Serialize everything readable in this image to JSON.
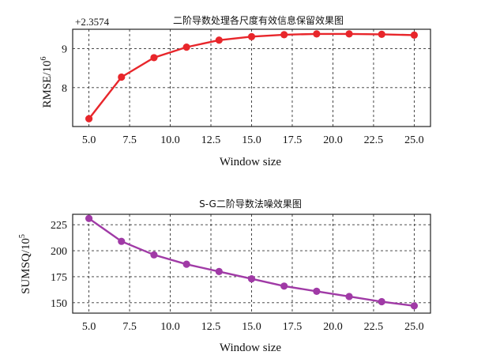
{
  "chart_data": [
    {
      "type": "line",
      "title": "二阶导数处理各尺度有效信息保留效果图",
      "xlabel": "Window size",
      "ylabel": "RMSE/10",
      "ylabel_exp": "6",
      "offset_text": "+2.3574",
      "xlim": [
        4.0,
        26.0
      ],
      "ylim": [
        7.0,
        9.5
      ],
      "xticks": [
        5.0,
        7.5,
        10.0,
        12.5,
        15.0,
        17.5,
        20.0,
        22.5,
        25.0
      ],
      "xtick_labels": [
        "5.0",
        "7.5",
        "10.0",
        "12.5",
        "15.0",
        "17.5",
        "20.0",
        "22.5",
        "25.0"
      ],
      "yticks": [
        8,
        9
      ],
      "ytick_labels": [
        "8",
        "9"
      ],
      "grid": true,
      "color": "#e8262b",
      "x": [
        5,
        7,
        9,
        11,
        13,
        15,
        17,
        19,
        21,
        23,
        25
      ],
      "y": [
        7.2,
        8.27,
        8.77,
        9.04,
        9.22,
        9.31,
        9.36,
        9.38,
        9.38,
        9.37,
        9.35
      ]
    },
    {
      "type": "line",
      "title": "S-G二阶导数法噪效果图",
      "xlabel": "Window size",
      "ylabel": "SUMSQ/10",
      "ylabel_exp": "5",
      "xlim": [
        4.0,
        26.0
      ],
      "ylim": [
        140,
        235
      ],
      "xticks": [
        5.0,
        7.5,
        10.0,
        12.5,
        15.0,
        17.5,
        20.0,
        22.5,
        25.0
      ],
      "xtick_labels": [
        "5.0",
        "7.5",
        "10.0",
        "12.5",
        "15.0",
        "17.5",
        "20.0",
        "22.5",
        "25.0"
      ],
      "yticks": [
        150,
        175,
        200,
        225
      ],
      "ytick_labels": [
        "150",
        "175",
        "200",
        "225"
      ],
      "grid": true,
      "color": "#a03aa6",
      "x": [
        5,
        7,
        9,
        11,
        13,
        15,
        17,
        19,
        21,
        23,
        25
      ],
      "y": [
        231,
        209,
        196,
        187,
        180,
        173,
        166,
        161,
        156,
        151,
        147
      ]
    }
  ]
}
